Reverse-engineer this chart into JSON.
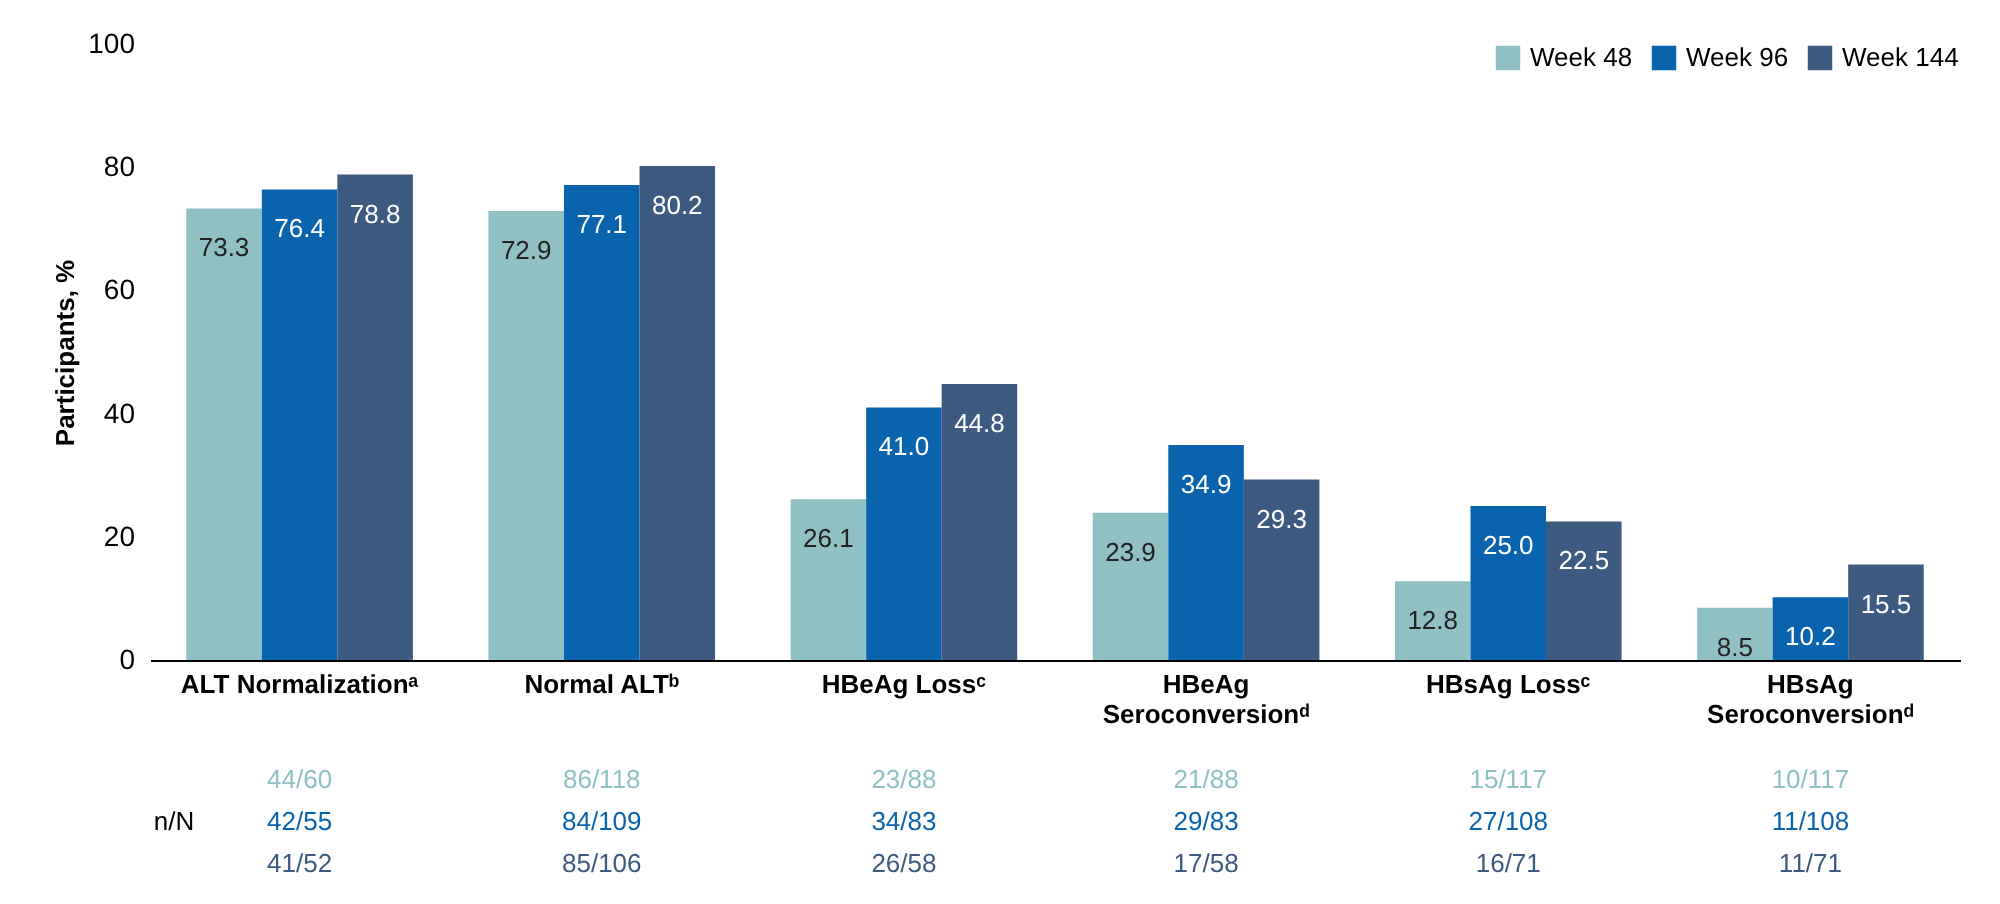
{
  "chart_data": {
    "type": "bar",
    "ylabel": "Participants, %",
    "categories": [
      "ALT Normalizationᵃ",
      "Normal ALTᵇ",
      "HBeAg Lossᶜ",
      "HBeAg Seroconversionᵈ",
      "HBsAg Lossᶜ",
      "HBsAg Seroconversionᵈ"
    ],
    "series": [
      {
        "name": "Week 48",
        "color": "#8fc1c4",
        "values": [
          73.3,
          72.9,
          26.1,
          23.9,
          12.8,
          8.5
        ],
        "value_labels": [
          "73.3",
          "72.9",
          "26.1",
          "23.9",
          "12.8",
          "8.5"
        ]
      },
      {
        "name": "Week 96",
        "color": "#0a64ad",
        "values": [
          76.4,
          77.1,
          41.0,
          34.9,
          25.0,
          10.2
        ],
        "value_labels": [
          "76.4",
          "77.1",
          "41.0",
          "34.9",
          "25.0",
          "10.2"
        ]
      },
      {
        "name": "Week 144",
        "color": "#3d5a80",
        "values": [
          78.8,
          80.2,
          44.8,
          29.3,
          22.5,
          15.5
        ],
        "value_labels": [
          "78.8",
          "80.2",
          "44.8",
          "29.3",
          "22.5",
          "15.5"
        ]
      }
    ],
    "ylim": [
      0,
      100
    ],
    "yticks": [
      0,
      20,
      40,
      60,
      80,
      100
    ],
    "grid": false,
    "legend": "top right",
    "annotations": [
      "n/N",
      "44/60",
      "86/118",
      "23/88",
      "21/88",
      "15/117",
      "10/117",
      "42/55",
      "84/109",
      "34/83",
      "29/83",
      "27/108",
      "11/108",
      "41/52",
      "85/106",
      "26/58",
      "17/58",
      "16/71",
      "11/71"
    ]
  }
}
